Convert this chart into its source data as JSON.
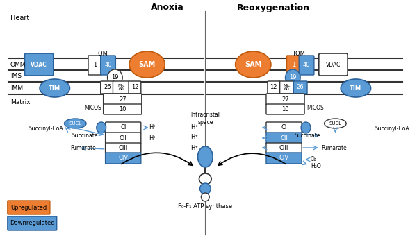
{
  "title_anoxia": "Anoxia",
  "title_reoxy": "Reoxygenation",
  "label_heart": "Heart",
  "label_omm": "OMM",
  "label_ims": "IMS",
  "label_imm": "IMM",
  "label_matrix": "Matrix",
  "label_intracristal": "Intracristal\nspace",
  "label_atp": "F₀-F₁ ATP synthase",
  "blue": "#5b9bd5",
  "orange": "#ed7d31",
  "fig_width": 6.0,
  "fig_height": 3.56
}
